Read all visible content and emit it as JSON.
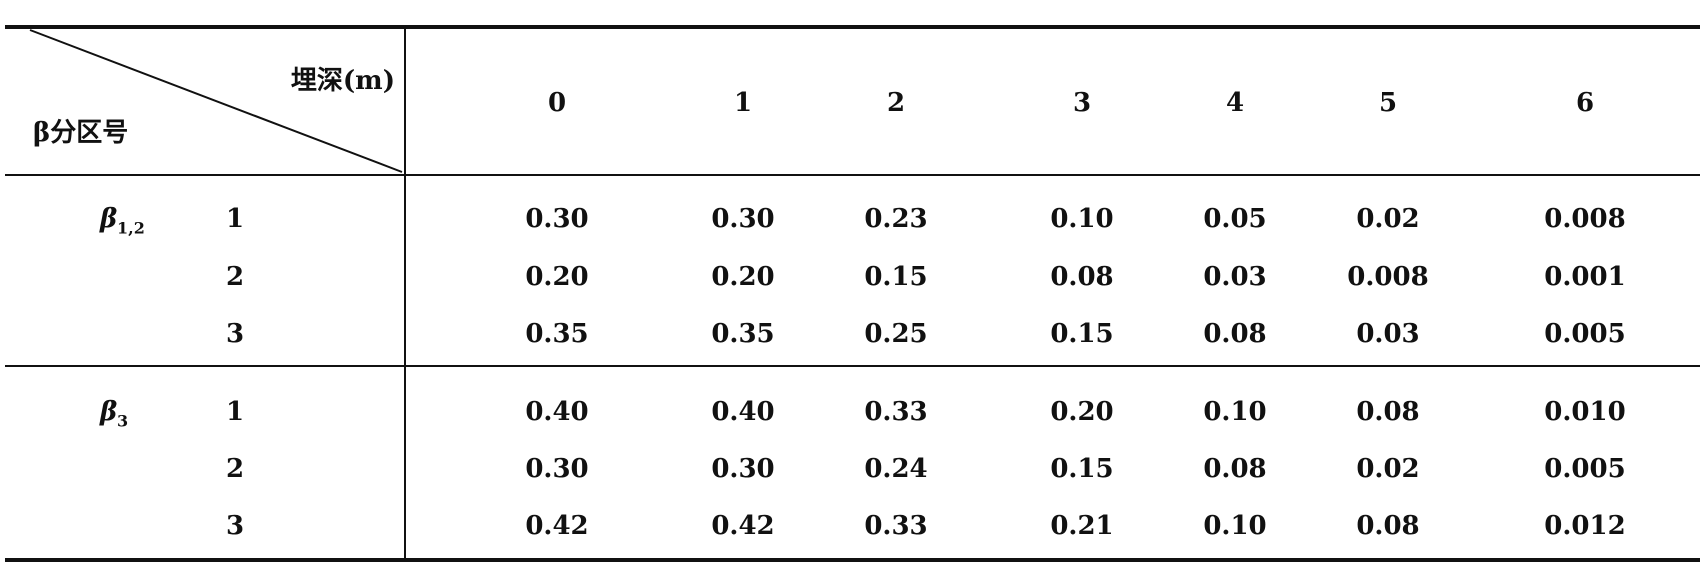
{
  "table": {
    "corner": {
      "column_header": "埋深(m)",
      "row_header": "β分区号"
    },
    "columns": [
      "0",
      "1",
      "2",
      "3",
      "4",
      "5",
      "6"
    ],
    "groups": [
      {
        "symbol": "β",
        "subscript": "1,2",
        "rows": [
          {
            "label": "1",
            "values": [
              "0.30",
              "0.30",
              "0.23",
              "0.10",
              "0.05",
              "0.02",
              "0.008"
            ]
          },
          {
            "label": "2",
            "values": [
              "0.20",
              "0.20",
              "0.15",
              "0.08",
              "0.03",
              "0.008",
              "0.001"
            ]
          },
          {
            "label": "3",
            "values": [
              "0.35",
              "0.35",
              "0.25",
              "0.15",
              "0.08",
              "0.03",
              "0.005"
            ]
          }
        ]
      },
      {
        "symbol": "β",
        "subscript": "3",
        "rows": [
          {
            "label": "1",
            "values": [
              "0.40",
              "0.40",
              "0.33",
              "0.20",
              "0.10",
              "0.08",
              "0.010"
            ]
          },
          {
            "label": "2",
            "values": [
              "0.30",
              "0.30",
              "0.24",
              "0.15",
              "0.08",
              "0.02",
              "0.005"
            ]
          },
          {
            "label": "3",
            "values": [
              "0.42",
              "0.42",
              "0.33",
              "0.21",
              "0.10",
              "0.08",
              "0.012"
            ]
          }
        ]
      }
    ]
  }
}
